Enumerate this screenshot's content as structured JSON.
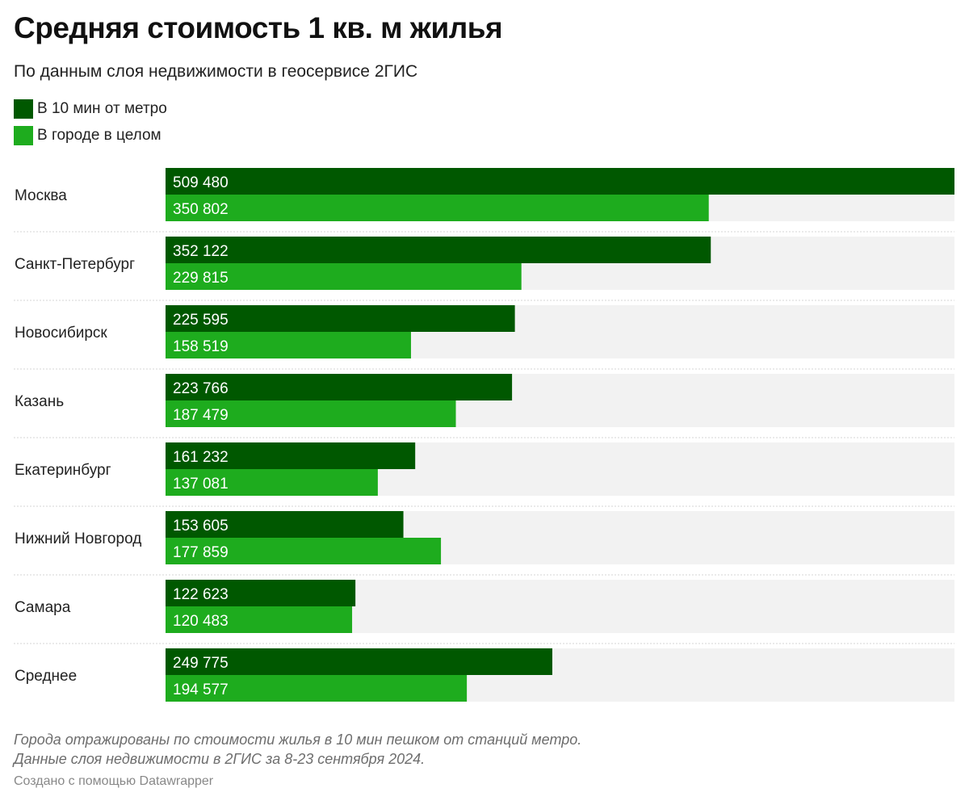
{
  "title": "Средняя стоимость 1 кв. м жилья",
  "subtitle": "По данным слоя недвижимости в геосервисе 2ГИС",
  "notes": [
    "Города отражированы по стоимости жилья в 10 мин пешком от станций метро.",
    "Данные слоя недвижимости в 2ГИС за 8-23 сентября 2024."
  ],
  "credit": "Создано с помощью Datawrapper",
  "colors": {
    "series_dark": "#005800",
    "series_light": "#1eac1e",
    "track": "#f2f2f2",
    "separator": "#d6d6d6"
  },
  "chart_data": {
    "type": "bar",
    "orientation": "horizontal",
    "grouped": true,
    "categories": [
      "Москва",
      "Санкт-Петербург",
      "Новосибирск",
      "Казань",
      "Екатеринбург",
      "Нижний Новгород",
      "Самара",
      "Среднее"
    ],
    "series": [
      {
        "name": "В 10 мин от метро",
        "color": "#005800",
        "values": [
          509480,
          352122,
          225595,
          223766,
          161232,
          153605,
          122623,
          249775
        ]
      },
      {
        "name": "В городе в целом",
        "color": "#1eac1e",
        "values": [
          350802,
          229815,
          158519,
          187479,
          137081,
          177859,
          120483,
          194577
        ]
      }
    ],
    "xlim": [
      0,
      509480
    ],
    "value_labels": {
      "dark": [
        "509 480",
        "352 122",
        "225 595",
        "223 766",
        "161 232",
        "153 605",
        "122 623",
        "249 775"
      ],
      "light": [
        "350 802",
        "229 815",
        "158 519",
        "187 479",
        "137 081",
        "177 859",
        "120 483",
        "194 577"
      ]
    },
    "legend_placement": "top-left",
    "grid": false
  }
}
